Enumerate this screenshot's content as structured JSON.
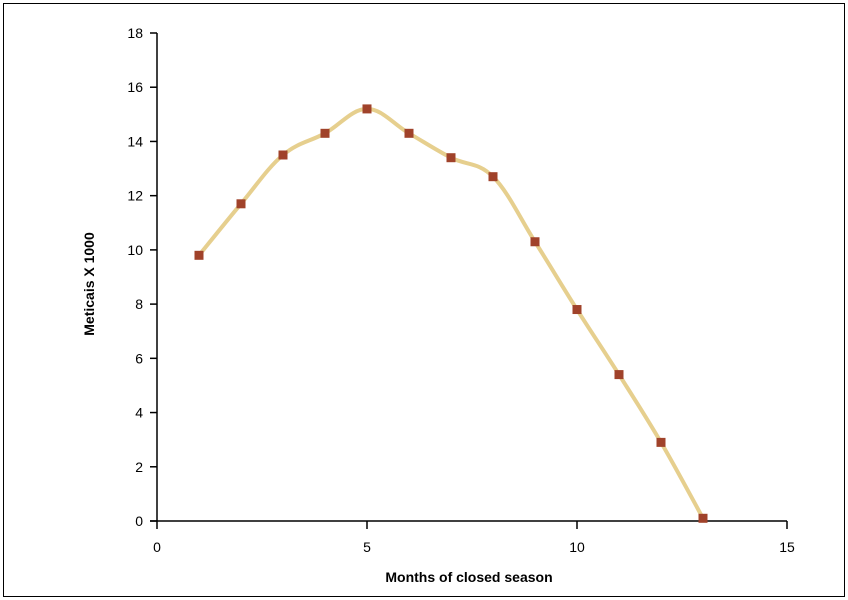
{
  "chart_data": {
    "type": "line",
    "title": "",
    "xlabel": "Months of closed season",
    "ylabel": "Meticais X 1000",
    "xlim": [
      0,
      15
    ],
    "ylim": [
      0,
      18
    ],
    "x_ticks": [
      0,
      5,
      10,
      15
    ],
    "y_ticks": [
      0,
      2,
      4,
      6,
      8,
      10,
      12,
      14,
      16,
      18
    ],
    "grid": false,
    "legend": "none",
    "series": [
      {
        "x": [
          1,
          2,
          3,
          4,
          5,
          6,
          7,
          8,
          9,
          10,
          11,
          12,
          13
        ],
        "values": [
          9.8,
          11.7,
          13.5,
          14.3,
          15.2,
          14.3,
          13.4,
          12.7,
          10.3,
          7.8,
          5.4,
          2.9,
          0.1
        ],
        "line_color": "#e6cf8e",
        "marker_color": "#a0422a",
        "marker": "square",
        "smooth": true
      }
    ]
  }
}
